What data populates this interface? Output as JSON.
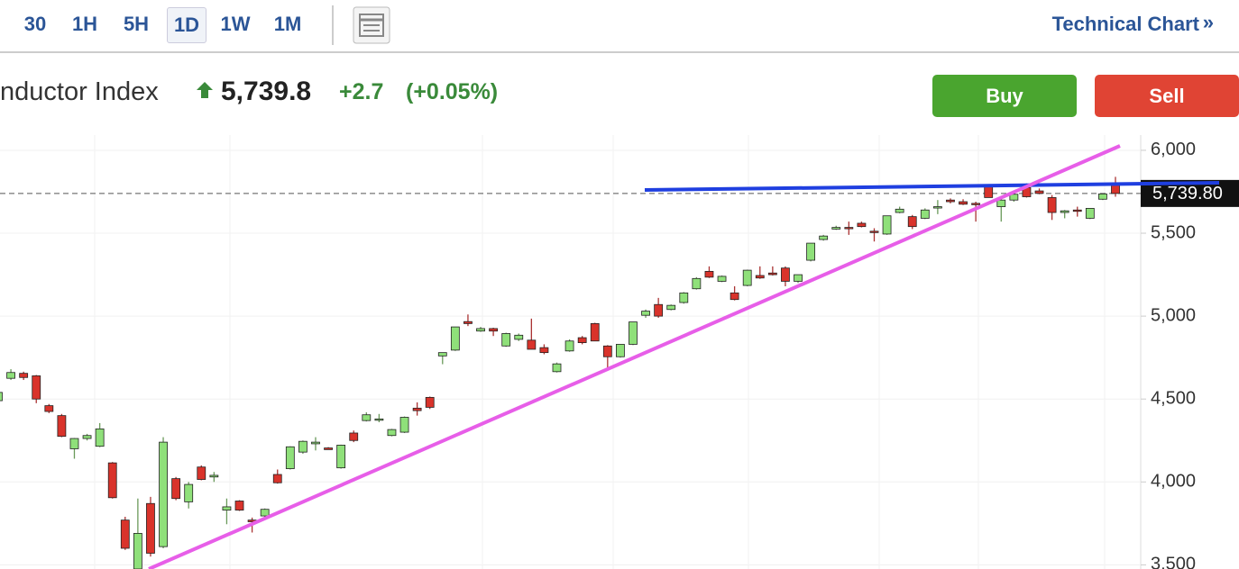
{
  "toolbar": {
    "intervals": [
      "30",
      "1H",
      "5H",
      "1D",
      "1W",
      "1M"
    ],
    "active_interval": "1D",
    "link": "Technical Chart",
    "link_arrow": "»"
  },
  "header": {
    "title": "nductor Index",
    "price": "5,739.8",
    "change": "+2.7",
    "change_pct": "(+0.05%)",
    "buy": "Buy",
    "sell": "Sell"
  },
  "chart_data": {
    "type": "candlestick",
    "up_color": "#8fe07a",
    "down_color": "#d9332b",
    "grid": true,
    "ylim": [
      3475,
      6092
    ],
    "yticks": [
      {
        "value": 3500,
        "label": "3,500"
      },
      {
        "value": 4000,
        "label": "4,000"
      },
      {
        "value": 4500,
        "label": "4,500"
      },
      {
        "value": 5000,
        "label": "5,000"
      },
      {
        "value": 5500,
        "label": "5,500"
      },
      {
        "value": 6000,
        "label": "6,000"
      }
    ],
    "last_price": {
      "value": 5739.8,
      "label": "5,739.80"
    },
    "open": [
      4490,
      4625,
      4655,
      4640,
      4460,
      4400,
      4200,
      4262,
      4215,
      4115,
      3770,
      3475,
      3870,
      3610,
      4020,
      3880,
      4090,
      4030,
      3830,
      3885,
      3770,
      3795,
      4045,
      4080,
      4180,
      4230,
      4205,
      4085,
      4295,
      4370,
      4375,
      4280,
      4300,
      4445,
      4510,
      4760,
      4795,
      4967,
      4910,
      4925,
      4820,
      4860,
      4855,
      4810,
      4665,
      4790,
      4870,
      4955,
      4820,
      4755,
      4830,
      5005,
      5070,
      5040,
      5082,
      5165,
      5270,
      5210,
      5140,
      5185,
      5245,
      5260,
      5290,
      5210,
      5337,
      5462,
      5525,
      5535,
      5560,
      5512,
      5495,
      5625,
      5600,
      5590,
      5652,
      5700,
      5690,
      5680,
      5780,
      5660,
      5700,
      5775,
      5755,
      5715,
      5625,
      5640,
      5590,
      5705,
      5790
    ],
    "high": [
      4560,
      4680,
      4665,
      4645,
      4470,
      4410,
      4265,
      4290,
      4355,
      4120,
      3790,
      3900,
      3910,
      4270,
      4030,
      4000,
      4100,
      4060,
      3900,
      3890,
      3785,
      3840,
      4075,
      4215,
      4250,
      4270,
      4210,
      4225,
      4310,
      4420,
      4410,
      4320,
      4395,
      4480,
      4515,
      4780,
      4935,
      5010,
      4935,
      4930,
      4900,
      4895,
      4985,
      4830,
      4720,
      4860,
      4880,
      4960,
      4825,
      4830,
      4965,
      5040,
      5110,
      5070,
      5145,
      5235,
      5300,
      5245,
      5180,
      5280,
      5300,
      5300,
      5300,
      5250,
      5440,
      5490,
      5545,
      5570,
      5570,
      5530,
      5605,
      5660,
      5610,
      5650,
      5700,
      5710,
      5705,
      5690,
      5790,
      5725,
      5750,
      5800,
      5770,
      5730,
      5640,
      5660,
      5650,
      5740,
      5840
    ],
    "low": [
      4480,
      4615,
      4615,
      4475,
      4415,
      4270,
      4140,
      4250,
      4210,
      3900,
      3590,
      3475,
      3550,
      3600,
      3890,
      3840,
      4010,
      4000,
      3745,
      3825,
      3695,
      3790,
      3990,
      4075,
      4170,
      4190,
      4195,
      4080,
      4240,
      4365,
      4360,
      4275,
      4295,
      4400,
      4440,
      4710,
      4790,
      4940,
      4905,
      4880,
      4815,
      4850,
      4800,
      4770,
      4660,
      4785,
      4830,
      4850,
      4680,
      4750,
      4825,
      4990,
      4990,
      5035,
      5075,
      5160,
      5230,
      5205,
      5095,
      5180,
      5225,
      5245,
      5180,
      5200,
      5330,
      5455,
      5520,
      5490,
      5535,
      5450,
      5490,
      5620,
      5525,
      5585,
      5615,
      5680,
      5670,
      5570,
      5715,
      5570,
      5690,
      5715,
      5735,
      5580,
      5590,
      5600,
      5585,
      5700,
      5720
    ],
    "close": [
      4540,
      4660,
      4630,
      4500,
      4425,
      4275,
      4262,
      4280,
      4320,
      3905,
      3600,
      3690,
      3570,
      4240,
      3900,
      3985,
      4015,
      4040,
      3850,
      3830,
      3760,
      3835,
      3995,
      4212,
      4245,
      4240,
      4195,
      4222,
      4250,
      4405,
      4380,
      4316,
      4390,
      4430,
      4450,
      4780,
      4935,
      4955,
      4925,
      4910,
      4895,
      4885,
      4800,
      4780,
      4712,
      4850,
      4840,
      4850,
      4755,
      4830,
      4965,
      5030,
      5000,
      5065,
      5140,
      5227,
      5235,
      5240,
      5100,
      5277,
      5230,
      5250,
      5210,
      5250,
      5440,
      5483,
      5535,
      5530,
      5540,
      5510,
      5605,
      5645,
      5540,
      5640,
      5660,
      5690,
      5675,
      5675,
      5715,
      5700,
      5735,
      5720,
      5740,
      5625,
      5635,
      5635,
      5650,
      5737.1,
      5739.8
    ]
  }
}
